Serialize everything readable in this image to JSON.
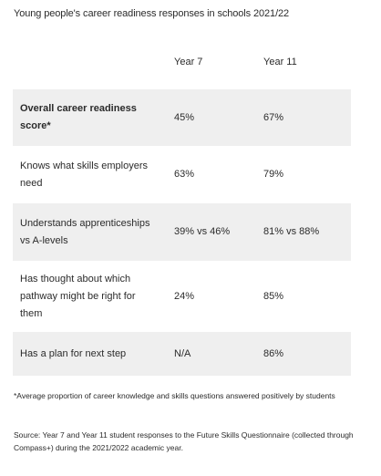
{
  "title": "Young people's career readiness responses in schools 2021/22",
  "table": {
    "headers": [
      "",
      "Year 7",
      "Year 11"
    ],
    "rows": [
      {
        "label": "Overall career readiness score*",
        "year7": "45%",
        "year11": "67%"
      },
      {
        "label": "Knows what skills employers need",
        "year7": "63%",
        "year11": "79%"
      },
      {
        "label": "Understands apprenticeships vs A-levels",
        "year7": "39% vs 46%",
        "year11": "81% vs 88%"
      },
      {
        "label": "Has thought about which pathway might be right for them",
        "year7": "24%",
        "year11": "85%"
      },
      {
        "label": "Has a plan for next step",
        "year7": "N/A",
        "year11": "86%"
      }
    ]
  },
  "footnote": "*Average proportion of career knowledge and skills questions answered positively by students",
  "source": "Source: Year 7 and Year 11 student responses to the Future Skills Questionnaire (collected through Compass+) during the 2021/2022 academic year.",
  "colors": {
    "text": "#2b2b2b",
    "row_shade": "#efefef",
    "background": "#ffffff"
  }
}
